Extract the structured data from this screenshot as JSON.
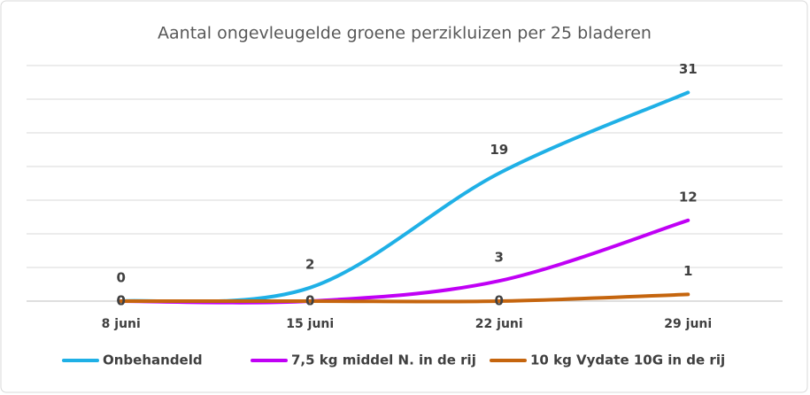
{
  "chart_data": {
    "type": "line",
    "title": "Aantal ongevleugelde groene perzikluizen per 25 bladeren",
    "categories": [
      "8 juni",
      "15 juni",
      "22 juni",
      "29 juni"
    ],
    "series": [
      {
        "name": "Onbehandeld",
        "color": "#1fb0e6",
        "values": [
          0,
          2,
          19,
          31
        ]
      },
      {
        "name": "7,5 kg middel N. in de rij",
        "color": "#c000f5",
        "values": [
          0,
          0,
          3,
          12
        ]
      },
      {
        "name": "10 kg Vydate 10G in de rij",
        "color": "#c5650e",
        "values": [
          0,
          0,
          0,
          1
        ]
      }
    ],
    "ylim": [
      0,
      35
    ],
    "yticks": [
      0,
      5,
      10,
      15,
      20,
      25,
      30,
      35
    ],
    "grid": true,
    "legend": "bottom"
  }
}
